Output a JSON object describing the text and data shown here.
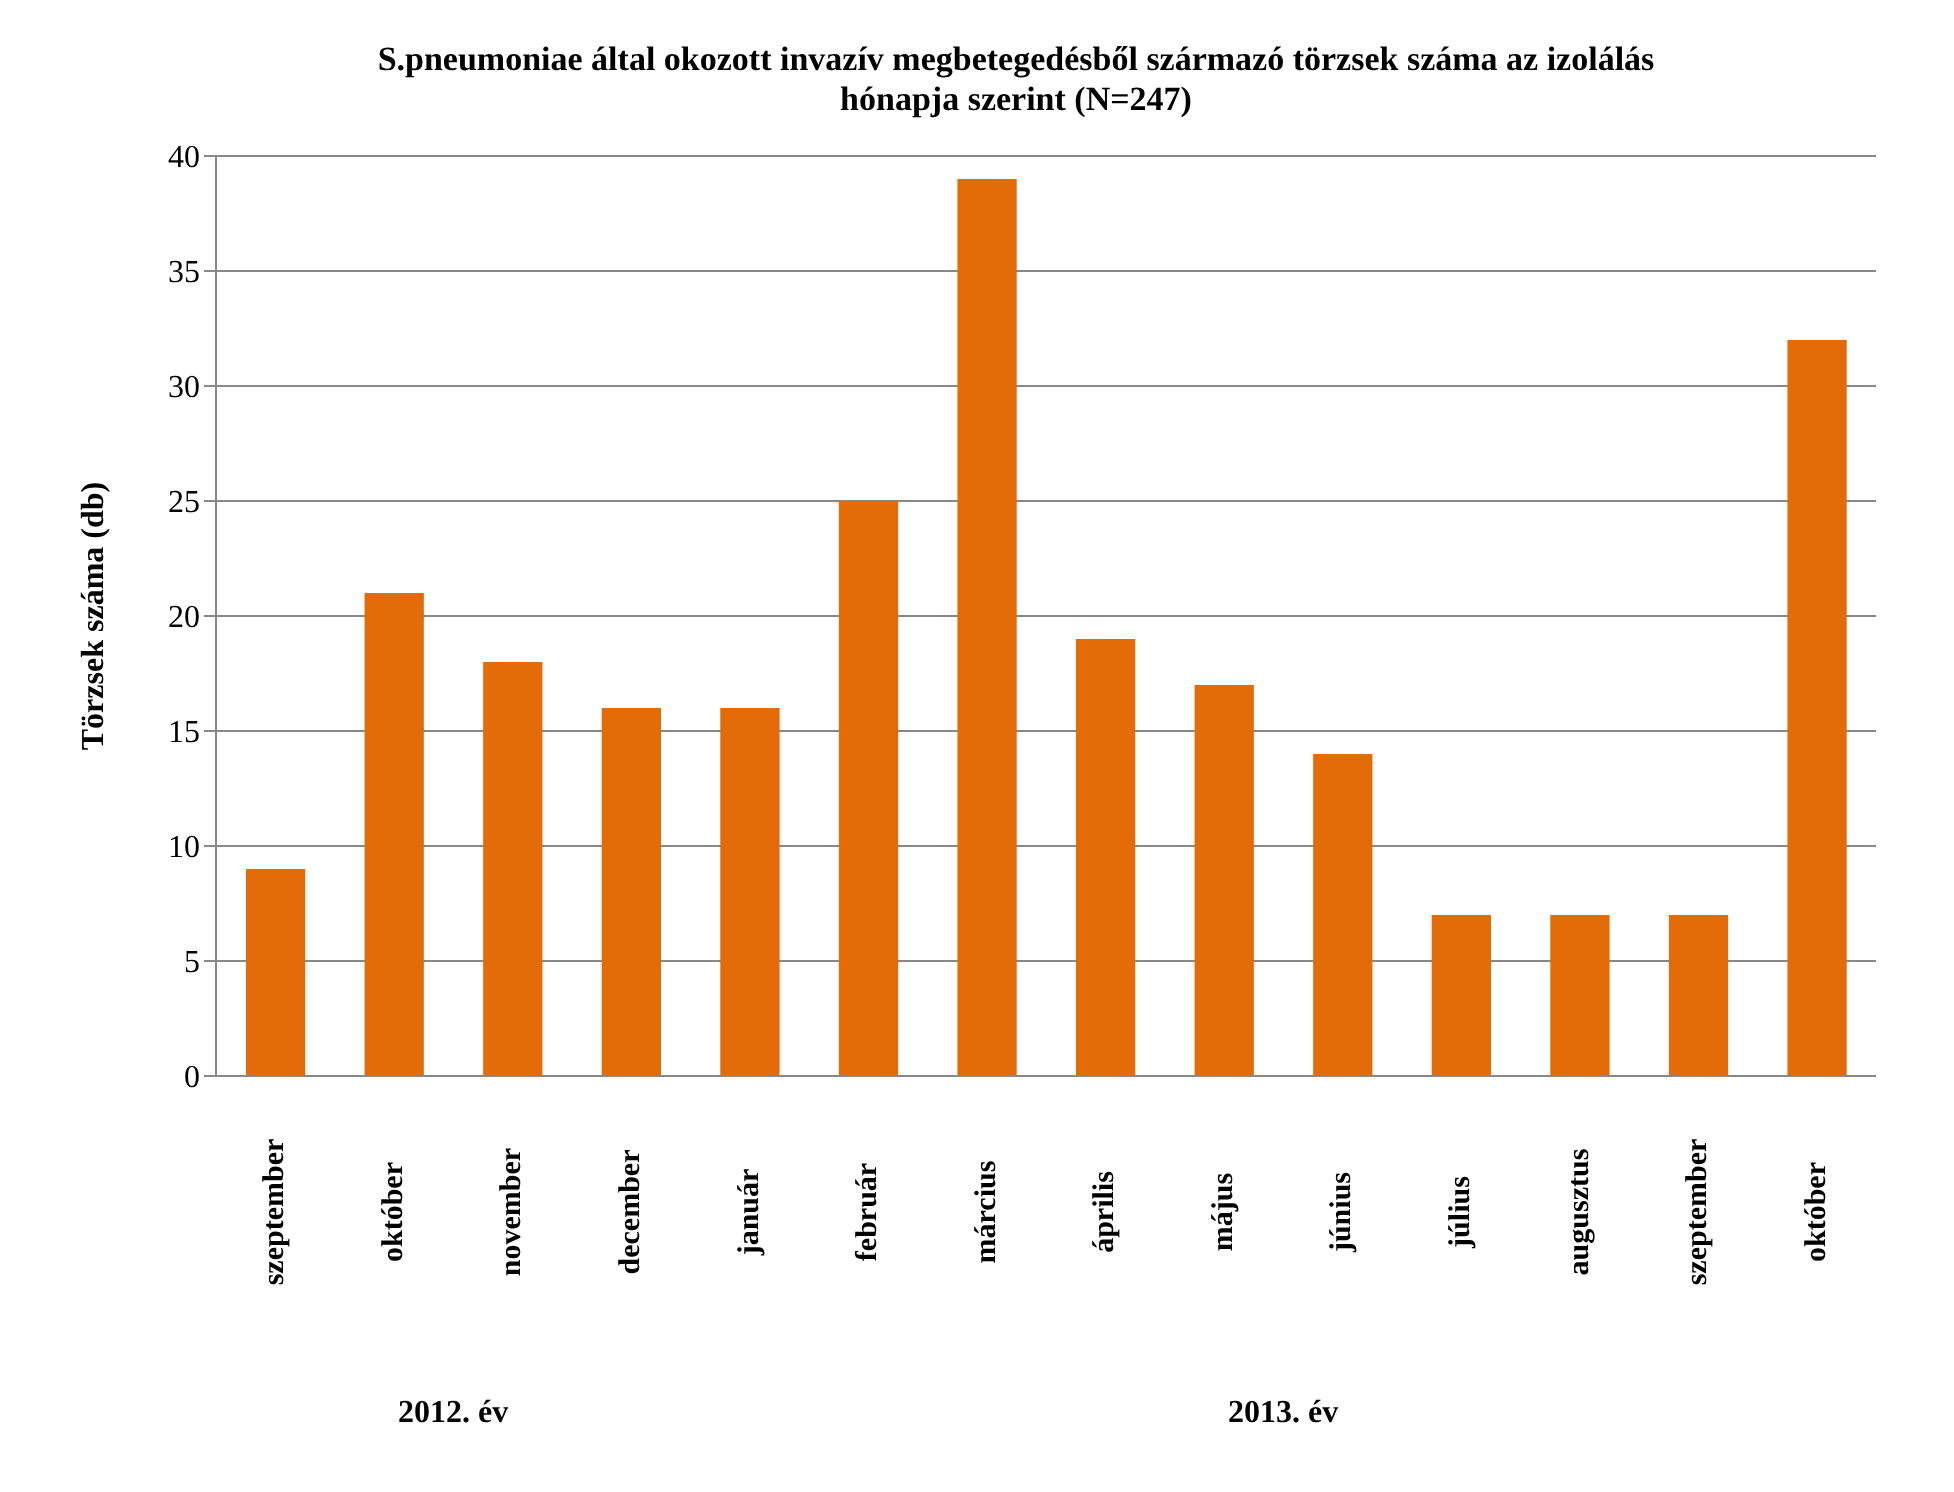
{
  "chart_data": {
    "type": "bar",
    "title": "S.pneumoniae által okozott invazív megbetegedésből származó törzsek száma az izolálás hónapja szerint (N=247)",
    "ylabel": "Törzsek száma (db)",
    "categories": [
      "szeptember",
      "október",
      "november",
      "december",
      "január",
      "február",
      "március",
      "április",
      "május",
      "június",
      "július",
      "augusztus",
      "szeptember",
      "október"
    ],
    "values": [
      9,
      21,
      18,
      16,
      16,
      25,
      39,
      19,
      17,
      14,
      7,
      7,
      7,
      32
    ],
    "color": "#e36c09",
    "ylim": [
      0,
      40
    ],
    "yticks": [
      0,
      5,
      10,
      15,
      20,
      25,
      30,
      35,
      40
    ],
    "grid": "y",
    "annotations": [
      "2012. év",
      "2013. év"
    ]
  }
}
